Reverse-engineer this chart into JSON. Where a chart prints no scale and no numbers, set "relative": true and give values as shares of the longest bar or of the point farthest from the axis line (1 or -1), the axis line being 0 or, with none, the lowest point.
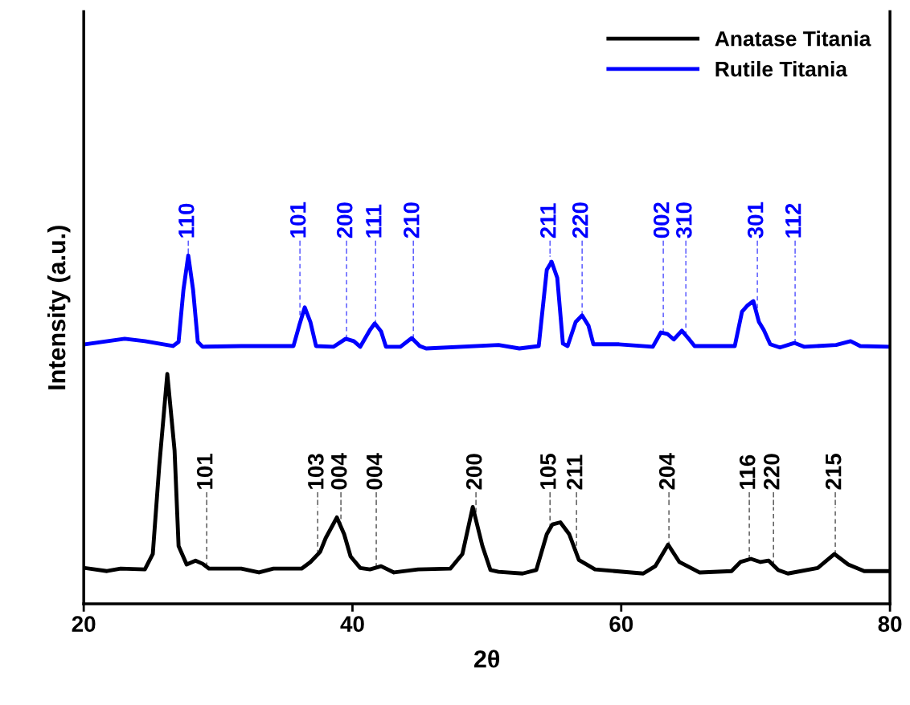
{
  "chart_data": {
    "type": "line",
    "relative": true,
    "xlabel": "2θ",
    "ylabel": "Intensity (a.u.)",
    "xlim": [
      20,
      80
    ],
    "xticks": [
      20,
      40,
      60,
      80
    ],
    "tick_labels": "x",
    "legend": "top right",
    "grid": false,
    "series": [
      {
        "name": "Anatase Titania",
        "color": "#000000",
        "x": [
          20.06,
          21.73,
          22.75,
          24.55,
          25.14,
          25.62,
          26.22,
          26.76,
          27.06,
          27.66,
          28.32,
          28.85,
          29.33,
          31.72,
          33.04,
          34.12,
          36.21,
          36.87,
          37.59,
          38.01,
          38.84,
          39.38,
          39.86,
          40.58,
          41.3,
          42.13,
          43.09,
          44.89,
          47.28,
          48.18,
          48.95,
          49.67,
          50.27,
          50.87,
          52.66,
          53.68,
          54.46,
          54.88,
          55.47,
          56.13,
          56.85,
          58.05,
          59.54,
          61.64,
          62.53,
          63.49,
          64.33,
          65.82,
          68.21,
          68.87,
          69.65,
          70.37,
          70.97,
          71.69,
          72.4,
          74.62,
          75.87,
          76.89,
          78.08,
          80.0
        ],
        "values": [
          0.103,
          0.094,
          0.101,
          0.099,
          0.143,
          0.395,
          0.66,
          0.441,
          0.166,
          0.113,
          0.124,
          0.115,
          0.101,
          0.101,
          0.09,
          0.101,
          0.101,
          0.12,
          0.149,
          0.189,
          0.248,
          0.2,
          0.136,
          0.103,
          0.099,
          0.108,
          0.09,
          0.099,
          0.101,
          0.143,
          0.278,
          0.166,
          0.097,
          0.092,
          0.087,
          0.097,
          0.2,
          0.228,
          0.234,
          0.2,
          0.126,
          0.099,
          0.094,
          0.087,
          0.108,
          0.17,
          0.12,
          0.09,
          0.094,
          0.12,
          0.129,
          0.12,
          0.124,
          0.097,
          0.087,
          0.103,
          0.143,
          0.113,
          0.094,
          0.094
        ]
      },
      {
        "name": "Rutile Titania",
        "color": "#0000ff",
        "x": [
          20.06,
          23.05,
          24.55,
          26.64,
          27.06,
          27.42,
          27.78,
          28.14,
          28.49,
          28.85,
          31.72,
          35.61,
          36.03,
          36.45,
          36.87,
          37.29,
          38.6,
          39.5,
          40.1,
          40.58,
          41.3,
          41.66,
          42.13,
          42.49,
          43.57,
          44.41,
          45.01,
          45.48,
          50.87,
          52.42,
          53.86,
          54.46,
          54.82,
          55.24,
          55.66,
          56.01,
          56.61,
          57.09,
          57.57,
          57.93,
          59.84,
          62.35,
          62.95,
          63.43,
          63.91,
          64.51,
          64.98,
          65.46,
          68.45,
          68.99,
          69.41,
          69.83,
          70.25,
          70.61,
          71.09,
          71.81,
          72.88,
          73.6,
          75.99,
          77.07,
          77.79,
          80.0
        ],
        "values": [
          0.745,
          0.761,
          0.754,
          0.74,
          0.752,
          0.901,
          1.0,
          0.901,
          0.752,
          0.738,
          0.74,
          0.74,
          0.798,
          0.851,
          0.809,
          0.74,
          0.738,
          0.761,
          0.754,
          0.738,
          0.786,
          0.805,
          0.782,
          0.738,
          0.738,
          0.763,
          0.74,
          0.733,
          0.743,
          0.733,
          0.74,
          0.959,
          0.982,
          0.936,
          0.747,
          0.74,
          0.809,
          0.828,
          0.798,
          0.745,
          0.745,
          0.738,
          0.779,
          0.775,
          0.759,
          0.784,
          0.763,
          0.74,
          0.74,
          0.839,
          0.857,
          0.869,
          0.809,
          0.786,
          0.745,
          0.736,
          0.749,
          0.738,
          0.743,
          0.754,
          0.74,
          0.738
        ]
      }
    ],
    "annotations": [
      {
        "text": "110",
        "x": 27.78,
        "y": 1.0
      },
      {
        "text": "101",
        "x": 36.09,
        "y": 0.806
      },
      {
        "text": "200",
        "x": 39.56,
        "y": 0.76
      },
      {
        "text": "111",
        "x": 41.72,
        "y": 0.802
      },
      {
        "text": "210",
        "x": 44.53,
        "y": 0.761
      },
      {
        "text": "211",
        "x": 54.7,
        "y": 0.974
      },
      {
        "text": "220",
        "x": 57.09,
        "y": 0.828
      },
      {
        "text": "002",
        "x": 63.13,
        "y": 0.778
      },
      {
        "text": "310",
        "x": 64.81,
        "y": 0.77
      },
      {
        "text": "301",
        "x": 70.13,
        "y": 0.826
      },
      {
        "text": "112",
        "x": 72.94,
        "y": 0.748
      },
      {
        "text": "101",
        "x": 29.15,
        "y": 0.106
      },
      {
        "text": "103",
        "x": 37.41,
        "y": 0.142
      },
      {
        "text": "004",
        "x": 39.14,
        "y": 0.221
      },
      {
        "text": "004",
        "x": 41.77,
        "y": 0.104
      },
      {
        "text": "200",
        "x": 49.19,
        "y": 0.24
      },
      {
        "text": "105",
        "x": 54.7,
        "y": 0.217
      },
      {
        "text": "211",
        "x": 56.67,
        "y": 0.144
      },
      {
        "text": "204",
        "x": 63.55,
        "y": 0.166
      },
      {
        "text": "116",
        "x": 69.53,
        "y": 0.128
      },
      {
        "text": "220",
        "x": 71.33,
        "y": 0.111
      },
      {
        "text": "215",
        "x": 75.93,
        "y": 0.141
      }
    ]
  }
}
